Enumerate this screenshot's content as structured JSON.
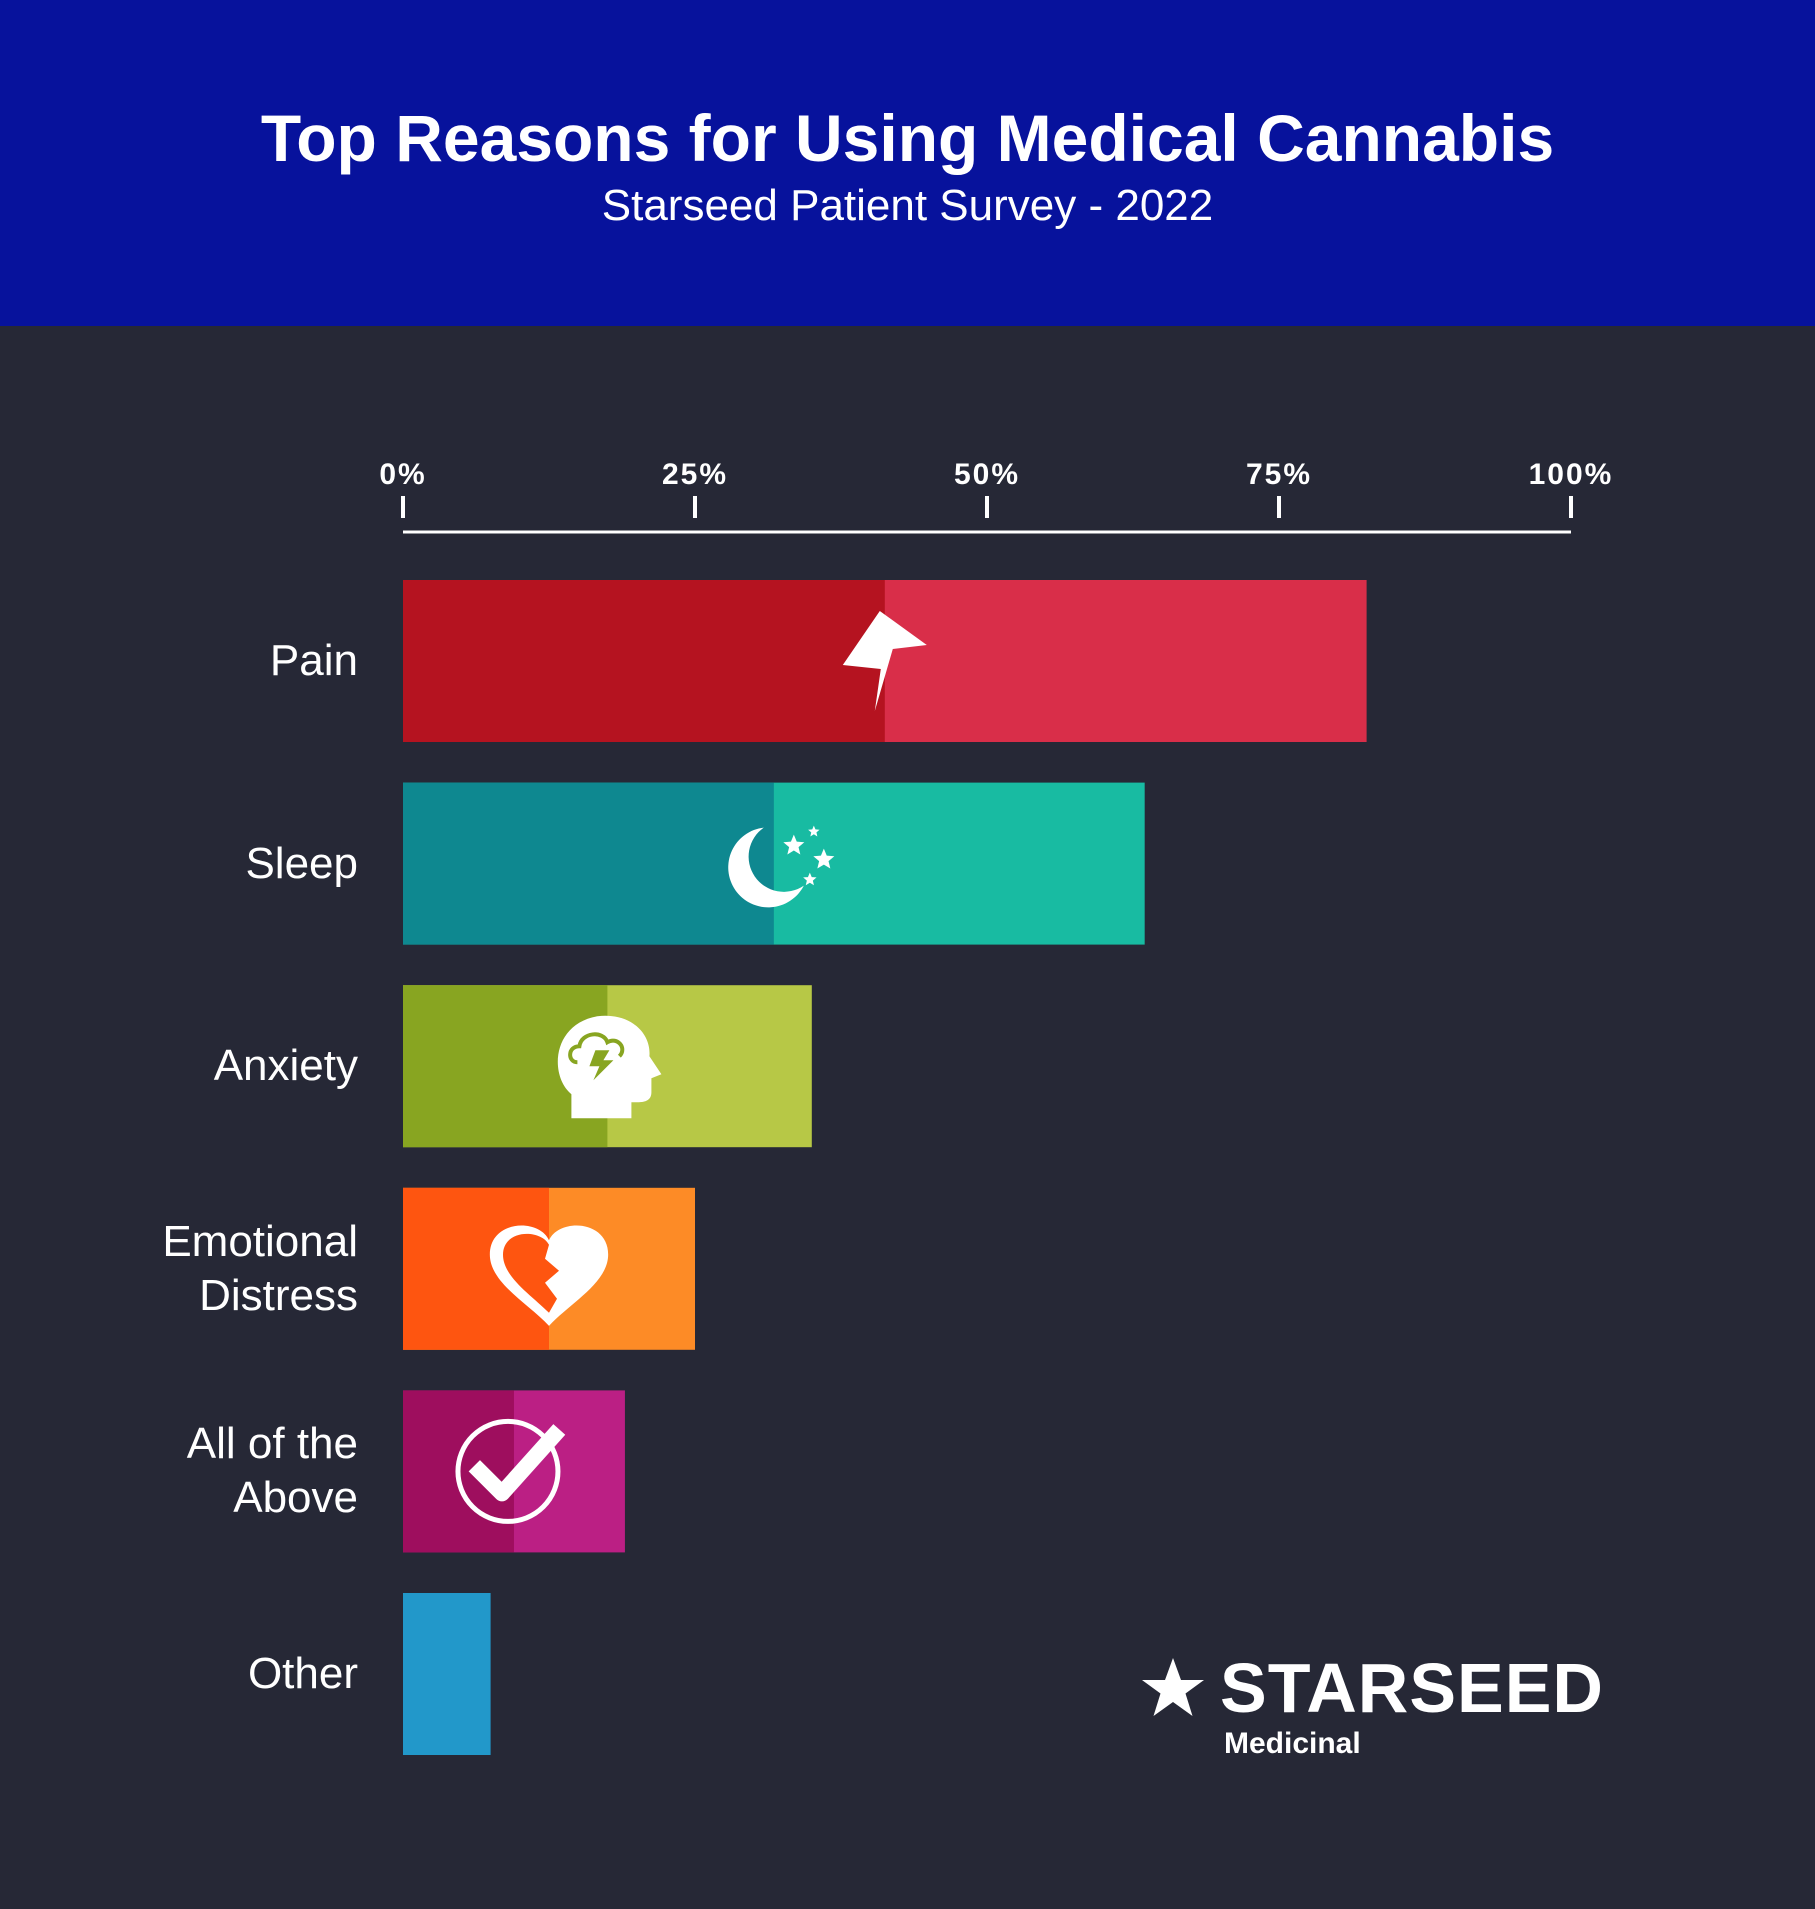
{
  "header": {
    "title": "Top Reasons for Using Medical Cannabis",
    "subtitle": "Starseed Patient Survey - 2022"
  },
  "chart_data": {
    "type": "bar",
    "orientation": "horizontal",
    "title": "Top Reasons for Using Medical Cannabis",
    "subtitle": "Starseed Patient Survey - 2022",
    "xlim": [
      0,
      100
    ],
    "x_ticks": [
      "0%",
      "25%",
      "50%",
      "75%",
      "100%"
    ],
    "x_tick_values": [
      0,
      25,
      50,
      75,
      100
    ],
    "axis_position": "top",
    "grid": false,
    "legend": "none",
    "categories": [
      "Pain",
      "Sleep",
      "Anxiety",
      "Emotional Distress",
      "All of the Above",
      "Other"
    ],
    "category_lines": [
      [
        "Pain"
      ],
      [
        "Sleep"
      ],
      [
        "Anxiety"
      ],
      [
        "Emotional",
        "Distress"
      ],
      [
        "All of the",
        "Above"
      ],
      [
        "Other"
      ]
    ],
    "values": [
      82.5,
      63.5,
      35,
      25,
      19,
      7.5
    ],
    "bars": [
      {
        "label": "Pain",
        "value": 82.5,
        "dark_color": "#b51320",
        "light_color": "#d92e49",
        "icon": "lightning-bolt-icon"
      },
      {
        "label": "Sleep",
        "value": 63.5,
        "dark_color": "#0e8890",
        "light_color": "#18bba2",
        "icon": "moon-stars-icon"
      },
      {
        "label": "Anxiety",
        "value": 35,
        "dark_color": "#88a521",
        "light_color": "#b7c846",
        "icon": "head-storm-icon"
      },
      {
        "label": "Emotional Distress",
        "value": 25,
        "dark_color": "#fe5510",
        "light_color": "#fd8b26",
        "icon": "broken-heart-icon"
      },
      {
        "label": "All of the Above",
        "value": 19,
        "dark_color": "#9e0e5e",
        "light_color": "#bb1f84",
        "icon": "check-circle-icon"
      },
      {
        "label": "Other",
        "value": 7.5,
        "dark_color": "#2298ca",
        "light_color": "#2298ca",
        "icon": ""
      }
    ]
  },
  "logo": {
    "name": "STARSEED",
    "sub": "Medicinal",
    "icon": "star-icon"
  }
}
